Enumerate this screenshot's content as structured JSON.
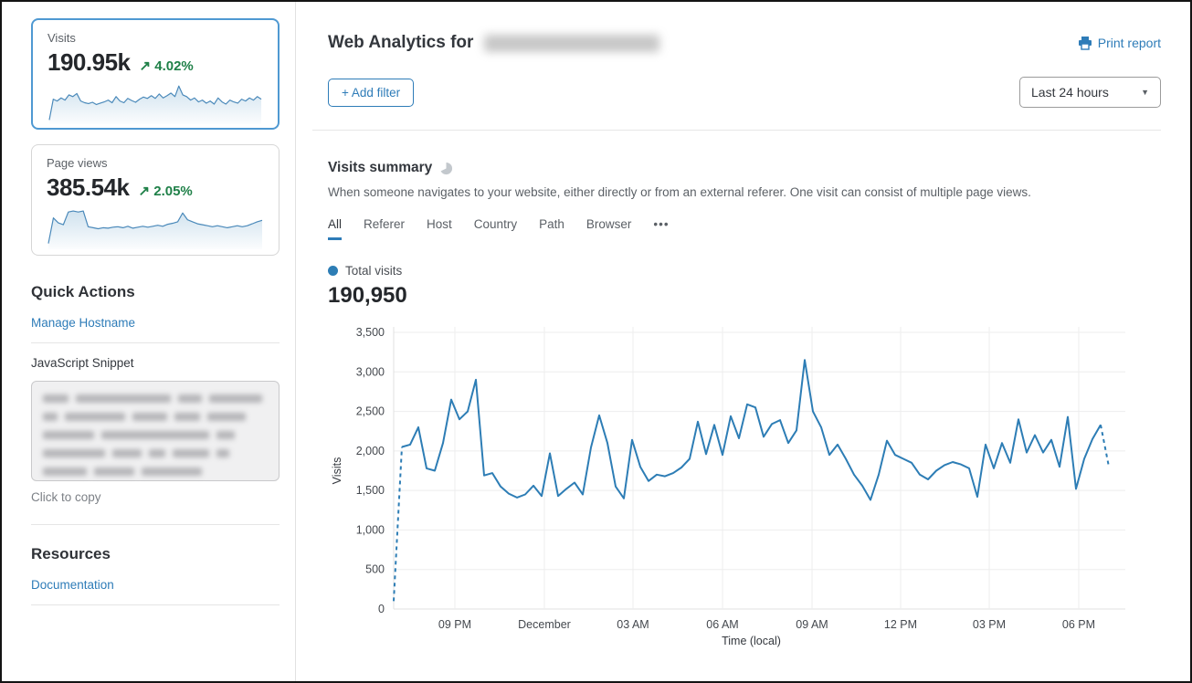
{
  "icons": {
    "trend_up": "↗",
    "caret_down": "▼",
    "legend_dot": "●"
  },
  "colors": {
    "accent": "#2e7cb8",
    "green": "#1f8048",
    "chart_line": "#2d7db5",
    "selected_card_border": "#4f99d2"
  },
  "sidebar": {
    "metric_cards": [
      {
        "label": "Visits",
        "value": "190.95k",
        "delta": "4.02%",
        "trend": "up",
        "spark": [
          5,
          52,
          48,
          55,
          50,
          62,
          58,
          65,
          48,
          44,
          42,
          45,
          40,
          43,
          46,
          50,
          44,
          58,
          48,
          44,
          54,
          49,
          45,
          52,
          57,
          54,
          60,
          54,
          64,
          55,
          60,
          66,
          58,
          82,
          62,
          58,
          50,
          55,
          46,
          50,
          43,
          48,
          41,
          55,
          46,
          41,
          50,
          46,
          43,
          52,
          48,
          55,
          50,
          58,
          52
        ]
      },
      {
        "label": "Page views",
        "value": "385.54k",
        "delta": "2.05%",
        "trend": "up",
        "spark": [
          8,
          60,
          50,
          46,
          72,
          74,
          72,
          74,
          42,
          40,
          38,
          40,
          39,
          41,
          42,
          40,
          43,
          39,
          41,
          43,
          41,
          43,
          45,
          43,
          47,
          49,
          52,
          70,
          56,
          52,
          48,
          46,
          44,
          42,
          44,
          42,
          40,
          42,
          44,
          42,
          44,
          48,
          52,
          55
        ]
      }
    ],
    "quick_actions": {
      "title": "Quick Actions",
      "manage_hostname_label": "Manage Hostname",
      "snippet_label": "JavaScript Snippet",
      "copy_hint": "Click to copy"
    },
    "resources": {
      "title": "Resources",
      "documentation_label": "Documentation"
    }
  },
  "header": {
    "title_prefix": "Web Analytics for",
    "print_label": "Print report"
  },
  "toolbar": {
    "add_filter_label": "+ Add filter",
    "time_range_value": "Last 24 hours"
  },
  "summary": {
    "title": "Visits summary",
    "description": "When someone navigates to your website, either directly or from an external referer. One visit can consist of multiple page views.",
    "tabs": [
      "All",
      "Referer",
      "Host",
      "Country",
      "Path",
      "Browser",
      "•••"
    ],
    "active_tab": "All",
    "legend_label": "Total visits",
    "total_value": "190,950"
  },
  "chart_data": {
    "type": "line",
    "title": "Total visits",
    "xlabel": "Time (local)",
    "ylabel": "Visits",
    "ylim": [
      0,
      3500
    ],
    "y_ticks": [
      "0",
      "500",
      "1,000",
      "1,500",
      "2,000",
      "2,500",
      "3,000",
      "3,500"
    ],
    "x_ticks": [
      "09 PM",
      "December",
      "03 AM",
      "06 AM",
      "09 AM",
      "12 PM",
      "03 PM",
      "06 PM"
    ],
    "grid": true,
    "legend_position": "top-left",
    "dashed_head_points": 2,
    "dashed_tail_points": 2,
    "values": [
      100,
      2050,
      2080,
      2300,
      1780,
      1750,
      2100,
      2650,
      2400,
      2500,
      2900,
      1690,
      1720,
      1550,
      1460,
      1410,
      1450,
      1560,
      1430,
      1970,
      1430,
      1520,
      1600,
      1450,
      2045,
      2450,
      2100,
      1550,
      1400,
      2140,
      1800,
      1620,
      1700,
      1680,
      1720,
      1790,
      1900,
      2370,
      1960,
      2330,
      1950,
      2440,
      2160,
      2590,
      2550,
      2180,
      2340,
      2390,
      2100,
      2260,
      3150,
      2500,
      2300,
      1950,
      2080,
      1900,
      1700,
      1560,
      1380,
      1700,
      2130,
      1950,
      1900,
      1850,
      1700,
      1640,
      1750,
      1820,
      1860,
      1830,
      1780,
      1420,
      2080,
      1780,
      2100,
      1850,
      2400,
      1980,
      2200,
      1980,
      2140,
      1800,
      2430,
      1520,
      1900,
      2150,
      2330,
      1800
    ]
  }
}
